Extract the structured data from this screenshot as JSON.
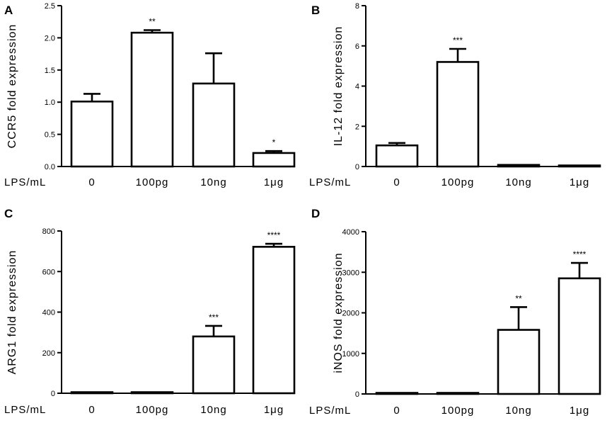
{
  "figure": {
    "xcat_label": "LPS/mL"
  },
  "chart_data": [
    {
      "panel": "A",
      "type": "bar",
      "ylabel": "CCR5 fold expression",
      "xlabel": "LPS/mL",
      "categories": [
        "0",
        "100pg",
        "10ng",
        "1μg"
      ],
      "values": [
        1.01,
        2.08,
        1.29,
        0.21
      ],
      "errors": [
        0.12,
        0.04,
        0.47,
        0.03
      ],
      "significance": [
        "",
        "**",
        "",
        "*"
      ],
      "ylim": [
        0,
        2.5
      ],
      "yticks": [
        "0.0",
        "0.5",
        "1.0",
        "1.5",
        "2.0",
        "2.5"
      ]
    },
    {
      "panel": "B",
      "type": "bar",
      "ylabel": "IL-12 fold expression",
      "xlabel": "LPS/mL",
      "categories": [
        "0",
        "100pg",
        "10ng",
        "1μg"
      ],
      "values": [
        1.05,
        5.2,
        0.08,
        0.05
      ],
      "errors": [
        0.12,
        0.65,
        0.02,
        0.01
      ],
      "significance": [
        "",
        "***",
        "",
        ""
      ],
      "ylim": [
        0,
        8
      ],
      "yticks": [
        "0",
        "2",
        "4",
        "6",
        "8"
      ]
    },
    {
      "panel": "C",
      "type": "bar",
      "ylabel": "ARG1 fold expression",
      "xlabel": "LPS/mL",
      "categories": [
        "0",
        "100pg",
        "10ng",
        "1μg"
      ],
      "values": [
        1,
        1,
        280,
        722
      ],
      "errors": [
        0.5,
        0.5,
        52,
        15
      ],
      "significance": [
        "",
        "",
        "***",
        "****"
      ],
      "ylim": [
        0,
        800
      ],
      "yticks": [
        "0",
        "200",
        "400",
        "600",
        "800"
      ]
    },
    {
      "panel": "D",
      "type": "bar",
      "ylabel": "iNOS fold expression",
      "xlabel": "LPS/mL",
      "categories": [
        "0",
        "100pg",
        "10ng",
        "1μg"
      ],
      "values": [
        1,
        10,
        1580,
        2850
      ],
      "errors": [
        1,
        3,
        560,
        380
      ],
      "significance": [
        "",
        "",
        "**",
        "****"
      ],
      "ylim": [
        0,
        4000
      ],
      "yticks": [
        "0",
        "1000",
        "2000",
        "3000",
        "4000"
      ]
    }
  ]
}
